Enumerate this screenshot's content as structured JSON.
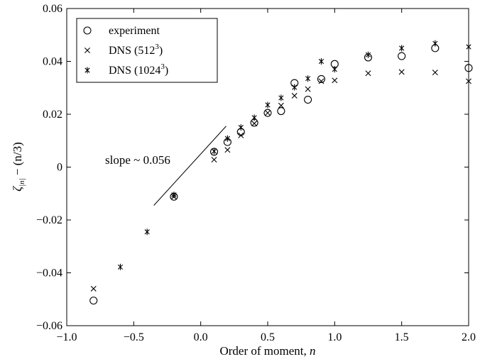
{
  "chart_data": {
    "type": "scatter",
    "xlabel": "Order of moment, n",
    "ylabel": "ζ|n| − (n/3)",
    "xlim": [
      -1.0,
      2.0
    ],
    "ylim": [
      -0.06,
      0.06
    ],
    "xticks": [
      -1.0,
      -0.5,
      0.0,
      0.5,
      1.0,
      1.5,
      2.0
    ],
    "xtick_labels": [
      "−1.0",
      "−0.5",
      "0.0",
      "0.5",
      "1.0",
      "1.5",
      "2.0"
    ],
    "yticks": [
      -0.06,
      -0.04,
      -0.02,
      0,
      0.02,
      0.04,
      0.06
    ],
    "ytick_labels": [
      "−0.06",
      "−0.04",
      "−0.02",
      "0",
      "0.02",
      "0.04",
      "0.06"
    ],
    "grid": false,
    "legend_position": "top-left",
    "series": [
      {
        "name": "experiment",
        "marker": "circle",
        "points": [
          [
            -0.8,
            -0.0505
          ],
          [
            -0.2,
            -0.0112
          ],
          [
            0.1,
            0.0058
          ],
          [
            0.2,
            0.0095
          ],
          [
            0.3,
            0.0133
          ],
          [
            0.4,
            0.0168
          ],
          [
            0.5,
            0.0205
          ],
          [
            0.6,
            0.0212
          ],
          [
            0.7,
            0.0318
          ],
          [
            0.8,
            0.0255
          ],
          [
            0.9,
            0.0333
          ],
          [
            1.0,
            0.039
          ],
          [
            1.25,
            0.0415
          ],
          [
            1.5,
            0.042
          ],
          [
            1.75,
            0.045
          ],
          [
            2.0,
            0.0375
          ]
        ]
      },
      {
        "name": "DNS (512^3)",
        "marker": "x",
        "points": [
          [
            -0.8,
            -0.046
          ],
          [
            -0.2,
            -0.0112
          ],
          [
            0.1,
            0.0028
          ],
          [
            0.2,
            0.0065
          ],
          [
            0.3,
            0.012
          ],
          [
            0.4,
            0.0165
          ],
          [
            0.5,
            0.0205
          ],
          [
            0.6,
            0.0233
          ],
          [
            0.7,
            0.027
          ],
          [
            0.8,
            0.0295
          ],
          [
            0.9,
            0.0325
          ],
          [
            1.0,
            0.0328
          ],
          [
            1.25,
            0.0355
          ],
          [
            1.5,
            0.036
          ],
          [
            1.75,
            0.0358
          ],
          [
            2.0,
            0.0325
          ]
        ]
      },
      {
        "name": "DNS (1024^3)",
        "marker": "asterisk",
        "points": [
          [
            -0.6,
            -0.0378
          ],
          [
            -0.4,
            -0.0245
          ],
          [
            -0.2,
            -0.0105
          ],
          [
            0.1,
            0.006
          ],
          [
            0.2,
            0.0108
          ],
          [
            0.3,
            0.015
          ],
          [
            0.4,
            0.0187
          ],
          [
            0.5,
            0.0235
          ],
          [
            0.6,
            0.0262
          ],
          [
            0.7,
            0.0302
          ],
          [
            0.8,
            0.0335
          ],
          [
            0.9,
            0.04
          ],
          [
            1.0,
            0.037
          ],
          [
            1.25,
            0.0425
          ],
          [
            1.5,
            0.045
          ],
          [
            1.75,
            0.0468
          ],
          [
            2.0,
            0.0455
          ]
        ]
      }
    ],
    "annotations": [
      {
        "text": "slope ~ 0.056",
        "line_from": [
          -0.35,
          -0.0145
        ],
        "line_to": [
          0.19,
          0.0155
        ]
      }
    ]
  }
}
